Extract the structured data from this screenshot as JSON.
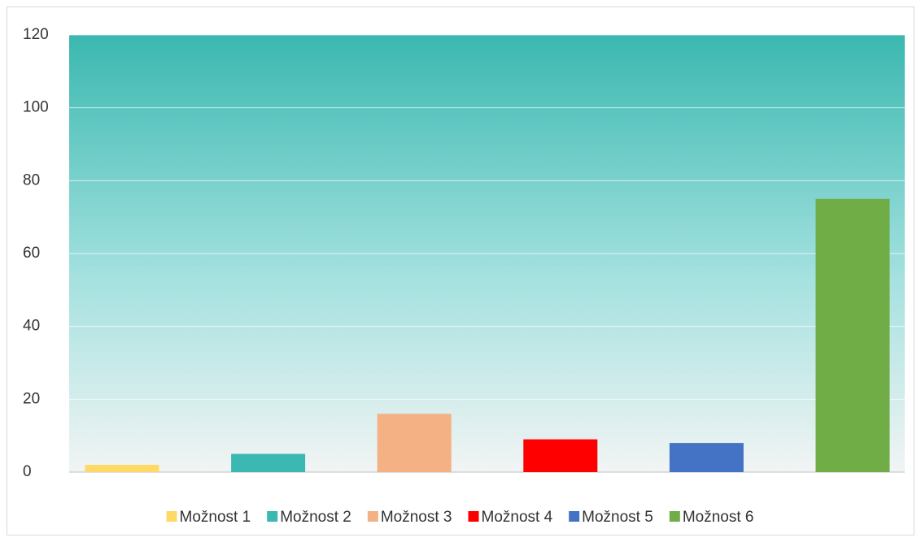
{
  "chart_data": {
    "type": "bar",
    "series": [
      {
        "name": "Možnost 1",
        "color": "#ffd966",
        "values": [
          2
        ]
      },
      {
        "name": "Možnost 2",
        "color": "#3cb8b2",
        "values": [
          5
        ]
      },
      {
        "name": "Možnost 3",
        "color": "#f4b183",
        "values": [
          16
        ]
      },
      {
        "name": "Možnost 4",
        "color": "#ff0000",
        "values": [
          9
        ]
      },
      {
        "name": "Možnost 5",
        "color": "#4472c4",
        "values": [
          8
        ]
      },
      {
        "name": "Možnost 6",
        "color": "#70ad47",
        "values": [
          75
        ]
      }
    ],
    "ylim": [
      0,
      120
    ],
    "yticks": [
      0,
      20,
      40,
      60,
      80,
      100,
      120
    ],
    "grid": true,
    "legend": "bottom"
  }
}
